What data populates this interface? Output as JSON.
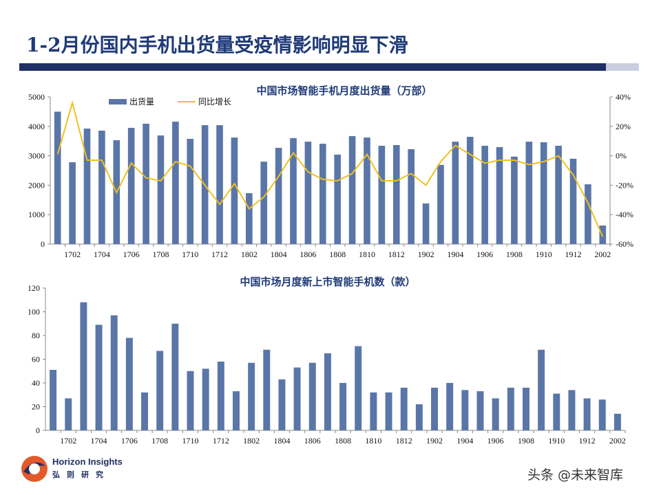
{
  "title": "1-2月份国内手机出货量受疫情影响明显下滑",
  "logo": {
    "en": "Horizon Insights",
    "cn": "弘则研究"
  },
  "watermark": "头条 @未来智库",
  "colors": {
    "bar": "#5a76a8",
    "line": "#f0c020",
    "title": "#1f3a78"
  },
  "chart_data": [
    {
      "type": "bar+line",
      "title": "中国市场智能手机月度出货量（万部）",
      "categories": [
        "1701",
        "1702",
        "1703",
        "1704",
        "1705",
        "1706",
        "1707",
        "1708",
        "1709",
        "1710",
        "1711",
        "1712",
        "1801",
        "1802",
        "1803",
        "1804",
        "1805",
        "1806",
        "1807",
        "1808",
        "1809",
        "1810",
        "1811",
        "1812",
        "1901",
        "1902",
        "1903",
        "1904",
        "1905",
        "1906",
        "1907",
        "1908",
        "1909",
        "1910",
        "1911",
        "1912",
        "2001",
        "2002"
      ],
      "tick_labels": [
        "1702",
        "1704",
        "1706",
        "1708",
        "1710",
        "1712",
        "1802",
        "1804",
        "1806",
        "1808",
        "1810",
        "1812",
        "1902",
        "1904",
        "1906",
        "1908",
        "1910",
        "1912",
        "2002"
      ],
      "series": [
        {
          "name": "出货量",
          "type": "bar",
          "axis": "left",
          "values": [
            4500,
            2780,
            3925,
            3855,
            3530,
            3950,
            4090,
            3690,
            4160,
            3575,
            4040,
            4040,
            3620,
            1730,
            2800,
            3270,
            3600,
            3480,
            3410,
            3040,
            3670,
            3620,
            3340,
            3365,
            3225,
            1380,
            2690,
            3480,
            3645,
            3340,
            3295,
            2970,
            3480,
            3460,
            3340,
            2900,
            2030,
            630
          ]
        },
        {
          "name": "同比增长",
          "type": "line",
          "axis": "right",
          "values": [
            1,
            36,
            -3,
            -3,
            -25,
            -5,
            -15,
            -17,
            -4,
            -7,
            -20,
            -33,
            -19,
            -36,
            -28,
            -14,
            2,
            -11,
            -16,
            -17,
            -12,
            1,
            -17,
            -17,
            -12,
            -20,
            -4,
            7,
            1,
            -5,
            -3,
            -3,
            -6,
            -4,
            0,
            -13,
            -32,
            -55
          ]
        }
      ],
      "ylim": [
        0,
        5000
      ],
      "yticks": [
        "0",
        "1000",
        "2000",
        "3000",
        "4000",
        "5000"
      ],
      "y2lim": [
        -60,
        40
      ],
      "y2ticks": [
        "-60%",
        "-40%",
        "-20%",
        "0%",
        "20%",
        "40%"
      ],
      "legend": "top-left"
    },
    {
      "type": "bar",
      "title": "中国市场月度新上市智能手机数（款）",
      "categories": [
        "1701",
        "1702",
        "1703",
        "1704",
        "1705",
        "1706",
        "1707",
        "1708",
        "1709",
        "1710",
        "1711",
        "1712",
        "1801",
        "1802",
        "1803",
        "1804",
        "1805",
        "1806",
        "1807",
        "1808",
        "1809",
        "1810",
        "1811",
        "1812",
        "1901",
        "1902",
        "1903",
        "1904",
        "1905",
        "1906",
        "1907",
        "1908",
        "1909",
        "1910",
        "1911",
        "1912",
        "2001",
        "2002"
      ],
      "tick_labels": [
        "1702",
        "1704",
        "1706",
        "1708",
        "1710",
        "1712",
        "1802",
        "1804",
        "1806",
        "1808",
        "1810",
        "1812",
        "1902",
        "1904",
        "1906",
        "1908",
        "1910",
        "1912",
        "2002"
      ],
      "values": [
        51,
        27,
        108,
        89,
        97,
        78,
        32,
        67,
        90,
        50,
        52,
        58,
        33,
        57,
        68,
        43,
        53,
        57,
        65,
        40,
        71,
        32,
        32,
        36,
        22,
        36,
        40,
        34,
        33,
        27,
        36,
        36,
        68,
        31,
        34,
        27,
        26,
        14
      ],
      "ylim": [
        0,
        120
      ],
      "yticks": [
        "0",
        "20",
        "40",
        "60",
        "80",
        "100",
        "120"
      ]
    }
  ]
}
